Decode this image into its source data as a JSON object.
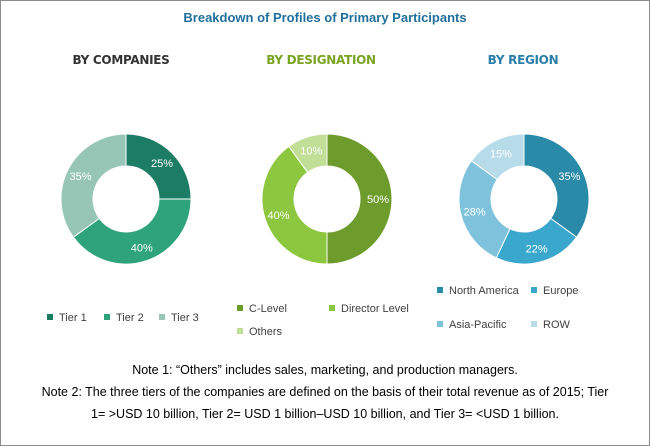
{
  "title": "Breakdown of Profiles of Primary Participants",
  "chart_data": [
    {
      "type": "pie",
      "title": "BY COMPANIES",
      "categories": [
        "Tier 1",
        "Tier 2",
        "Tier 3"
      ],
      "values": [
        25,
        40,
        35
      ],
      "labels": [
        "25%",
        "40%",
        "35%"
      ],
      "colors": [
        "#1c7c64",
        "#2ea37c",
        "#97c6b6"
      ],
      "legend_position": "bottom"
    },
    {
      "type": "pie",
      "title": "BY DESIGNATION",
      "categories": [
        "C-Level",
        "Director Level",
        "Others"
      ],
      "values": [
        50,
        40,
        10
      ],
      "labels": [
        "50%",
        "40%",
        "10%"
      ],
      "colors": [
        "#6e9c2c",
        "#8dc63f",
        "#c1df96"
      ],
      "legend_position": "bottom"
    },
    {
      "type": "pie",
      "title": "BY REGION",
      "categories": [
        "North America",
        "Europe",
        "Asia-Pacific",
        "ROW"
      ],
      "values": [
        35,
        22,
        28,
        15
      ],
      "labels": [
        "35%",
        "22%",
        "28%",
        "15%"
      ],
      "colors": [
        "#2a8ba8",
        "#3aa7cc",
        "#7fc2dc",
        "#b7dbe9"
      ],
      "legend_position": "bottom"
    }
  ],
  "notes": [
    "Note 1: “Others” includes sales, marketing, and production managers.",
    "Note 2: The three tiers of the companies are defined on the basis of their total revenue as of 2015; Tier",
    "1= >USD 10 billion, Tier 2= USD 1 billion–USD 10 billion, and Tier 3= <USD 1 billion."
  ]
}
